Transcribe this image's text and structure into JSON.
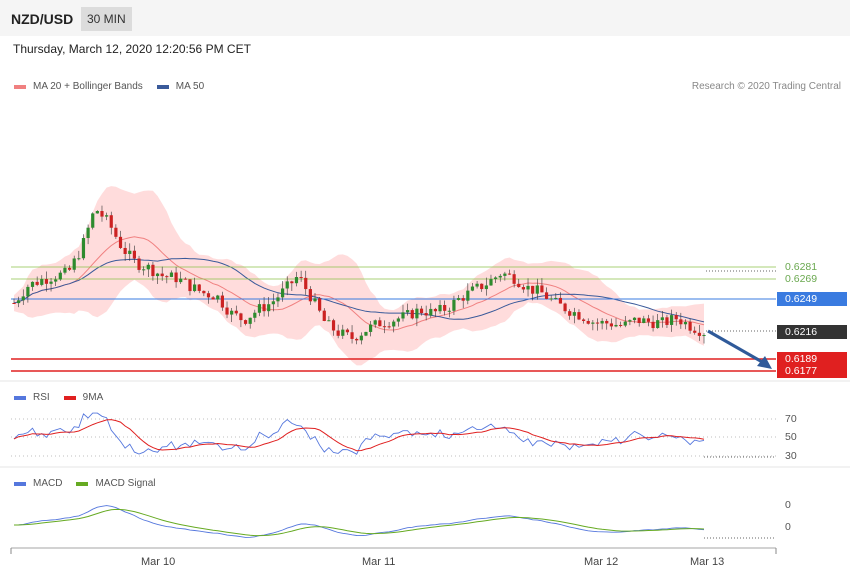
{
  "header": {
    "pair": "NZD/USD",
    "timeframe": "30 MIN"
  },
  "date_line": "Thursday, March 12, 2020 12:20:56 PM CET",
  "main_legend": {
    "ma20_label": "MA 20 + Bollinger Bands",
    "ma50_label": "MA 50"
  },
  "credit": "Research © 2020 Trading Central",
  "levels": {
    "r2": "0.6281",
    "r1": "0.6269",
    "pivot": "0.6249",
    "last": "0.6216",
    "s1": "0.6189",
    "s2": "0.6177"
  },
  "rsi_legend": {
    "rsi_label": "RSI",
    "ma_label": "9MA"
  },
  "rsi_axis": {
    "t70": "70",
    "t50": "50",
    "t30": "30"
  },
  "macd_legend": {
    "macd_label": "MACD",
    "signal_label": "MACD Signal"
  },
  "macd_axis": {
    "t1": "0",
    "t2": "0"
  },
  "x_axis": [
    "Mar 10",
    "Mar 11",
    "Mar 12",
    "Mar 13"
  ],
  "colors": {
    "up": "#2e8b2e",
    "down": "#cc2222",
    "ma20": "#f08080",
    "ma50": "#3a5a9a",
    "band": "#ffd6d6",
    "pivot": "#3a7be0",
    "support": "#e02020",
    "resist": "#8bc34a",
    "rsi": "#5577dd",
    "rsi_ma": "#e02020",
    "macd": "#5577dd",
    "signal": "#66aa22",
    "arrow": "#2f5a9a"
  },
  "chart_data": {
    "type": "candlestick",
    "instrument": "NZD/USD",
    "interval": "30 MIN",
    "x_ticks": [
      "Mar 10",
      "Mar 11",
      "Mar 12",
      "Mar 13"
    ],
    "key_levels": [
      0.6281,
      0.6269,
      0.6249,
      0.6216,
      0.6189,
      0.6177
    ],
    "close_path": [
      0.6245,
      0.6262,
      0.6268,
      0.6272,
      0.6275,
      0.63,
      0.634,
      0.6325,
      0.63,
      0.6285,
      0.628,
      0.6272,
      0.627,
      0.6262,
      0.6255,
      0.6252,
      0.6235,
      0.6228,
      0.6238,
      0.6245,
      0.6258,
      0.6272,
      0.625,
      0.6225,
      0.6215,
      0.621,
      0.6218,
      0.6225,
      0.6228,
      0.6232,
      0.6238,
      0.6235,
      0.624,
      0.625,
      0.6258,
      0.6265,
      0.6275,
      0.627,
      0.626,
      0.6255,
      0.6245,
      0.6238,
      0.6232,
      0.6225,
      0.6225,
      0.6222,
      0.6228,
      0.6226,
      0.6225,
      0.623,
      0.6222,
      0.6216
    ],
    "rsi_ticks": [
      70,
      50,
      30
    ],
    "macd_ticks": [
      0,
      0
    ]
  }
}
